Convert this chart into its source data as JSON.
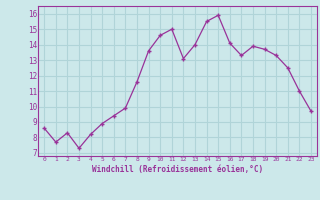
{
  "x": [
    0,
    1,
    2,
    3,
    4,
    5,
    6,
    7,
    8,
    9,
    10,
    11,
    12,
    13,
    14,
    15,
    16,
    17,
    18,
    19,
    20,
    21,
    22,
    23
  ],
  "y": [
    8.6,
    7.7,
    8.3,
    7.3,
    8.2,
    8.9,
    9.4,
    9.9,
    11.6,
    13.6,
    14.6,
    15.0,
    13.1,
    14.0,
    15.5,
    15.9,
    14.1,
    13.3,
    13.9,
    13.7,
    13.3,
    12.5,
    11.0,
    9.7
  ],
  "line_color": "#993399",
  "marker": "+",
  "marker_size": 3.5,
  "marker_lw": 1.0,
  "bg_color": "#cce8ea",
  "grid_color": "#b0d4d8",
  "xlabel": "Windchill (Refroidissement éolien,°C)",
  "xlabel_color": "#993399",
  "tick_color": "#993399",
  "ylabel_ticks": [
    7,
    8,
    9,
    10,
    11,
    12,
    13,
    14,
    15,
    16
  ],
  "xtick_labels": [
    "0",
    "1",
    "2",
    "3",
    "4",
    "5",
    "6",
    "7",
    "8",
    "9",
    "10",
    "11",
    "12",
    "13",
    "14",
    "15",
    "16",
    "17",
    "18",
    "19",
    "20",
    "21",
    "22",
    "23"
  ],
  "ylim": [
    6.8,
    16.5
  ],
  "xlim": [
    -0.5,
    23.5
  ]
}
